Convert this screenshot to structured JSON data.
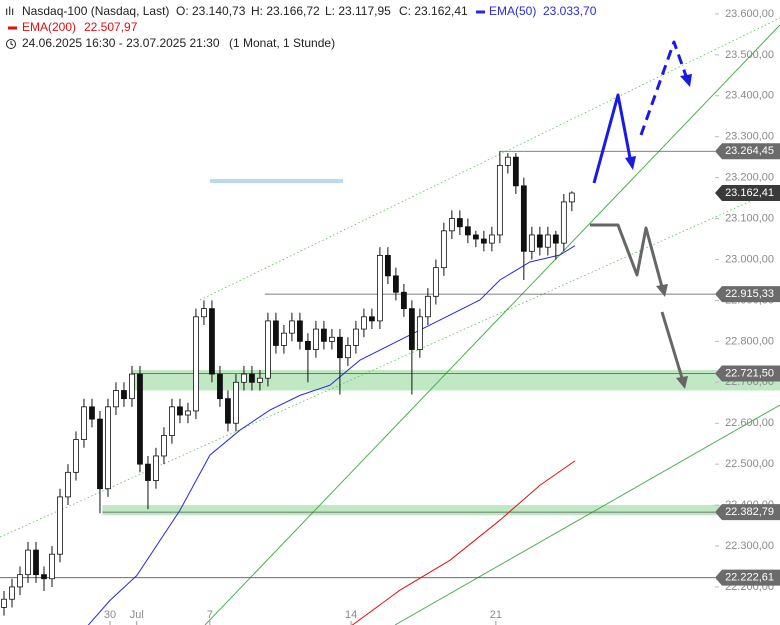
{
  "chart_data": {
    "type": "candlestick",
    "title": "Nasdaq-100 (Nasdaq, Last)",
    "ohlc_labels": [
      "O: 23.140,73",
      "H: 23.166,72",
      "L: 23.117,95",
      "C: 23.162,41"
    ],
    "period": "24.06.2025 16:30 - 23.07.2025 21:30",
    "interval": "(1 Monat, 1 Stunde)",
    "candles": [
      [
        22150,
        22190,
        22130,
        22170
      ],
      [
        22170,
        22220,
        22150,
        22200
      ],
      [
        22200,
        22250,
        22180,
        22230
      ],
      [
        22230,
        22310,
        22210,
        22290
      ],
      [
        22290,
        22310,
        22210,
        22230
      ],
      [
        22230,
        22250,
        22190,
        22220
      ],
      [
        22220,
        22300,
        22200,
        22280
      ],
      [
        22280,
        22440,
        22260,
        22420
      ],
      [
        22420,
        22500,
        22400,
        22480
      ],
      [
        22480,
        22580,
        22460,
        22560
      ],
      [
        22560,
        22660,
        22540,
        22640
      ],
      [
        22640,
        22660,
        22590,
        22610
      ],
      [
        22610,
        22630,
        22380,
        22440
      ],
      [
        22440,
        22660,
        22420,
        22640
      ],
      [
        22640,
        22700,
        22620,
        22680
      ],
      [
        22680,
        22700,
        22640,
        22660
      ],
      [
        22660,
        22740,
        22640,
        22720
      ],
      [
        22720,
        22740,
        22480,
        22500
      ],
      [
        22500,
        22520,
        22390,
        22460
      ],
      [
        22460,
        22540,
        22440,
        22520
      ],
      [
        22520,
        22590,
        22500,
        22570
      ],
      [
        22570,
        22660,
        22550,
        22640
      ],
      [
        22640,
        22660,
        22600,
        22620
      ],
      [
        22620,
        22650,
        22600,
        22630
      ],
      [
        22630,
        22880,
        22610,
        22860
      ],
      [
        22860,
        22900,
        22840,
        22880
      ],
      [
        22880,
        22900,
        22700,
        22720
      ],
      [
        22720,
        22740,
        22640,
        22660
      ],
      [
        22660,
        22680,
        22580,
        22600
      ],
      [
        22600,
        22720,
        22580,
        22700
      ],
      [
        22700,
        22740,
        22680,
        22720
      ],
      [
        22720,
        22740,
        22680,
        22700
      ],
      [
        22700,
        22730,
        22680,
        22710
      ],
      [
        22710,
        22870,
        22690,
        22850
      ],
      [
        22850,
        22870,
        22770,
        22790
      ],
      [
        22790,
        22840,
        22770,
        22820
      ],
      [
        22820,
        22870,
        22800,
        22850
      ],
      [
        22850,
        22870,
        22780,
        22800
      ],
      [
        22800,
        22820,
        22700,
        22780
      ],
      [
        22780,
        22850,
        22760,
        22830
      ],
      [
        22830,
        22850,
        22780,
        22800
      ],
      [
        22800,
        22830,
        22780,
        22810
      ],
      [
        22810,
        22830,
        22670,
        22760
      ],
      [
        22760,
        22810,
        22740,
        22790
      ],
      [
        22790,
        22850,
        22770,
        22830
      ],
      [
        22830,
        22880,
        22810,
        22860
      ],
      [
        22860,
        22880,
        22830,
        22850
      ],
      [
        22850,
        23030,
        22830,
        23010
      ],
      [
        23010,
        23030,
        22940,
        22960
      ],
      [
        22960,
        22980,
        22900,
        22920
      ],
      [
        22920,
        22940,
        22860,
        22880
      ],
      [
        22880,
        22900,
        22670,
        22780
      ],
      [
        22780,
        22880,
        22760,
        22860
      ],
      [
        22860,
        22930,
        22840,
        22910
      ],
      [
        22910,
        23000,
        22890,
        22980
      ],
      [
        22980,
        23090,
        22960,
        23070
      ],
      [
        23070,
        23120,
        23050,
        23100
      ],
      [
        23100,
        23120,
        23060,
        23080
      ],
      [
        23080,
        23100,
        23040,
        23060
      ],
      [
        23060,
        23070,
        23030,
        23050
      ],
      [
        23050,
        23070,
        23020,
        23040
      ],
      [
        23040,
        23080,
        23020,
        23060
      ],
      [
        23060,
        23264.45,
        23040,
        23230
      ],
      [
        23230,
        23260,
        23210,
        23250
      ],
      [
        23250,
        23260,
        23160,
        23180
      ],
      [
        23180,
        23200,
        22950,
        23020
      ],
      [
        23020,
        23080,
        23000,
        23060
      ],
      [
        23060,
        23080,
        23010,
        23030
      ],
      [
        23030,
        23080,
        23010,
        23060
      ],
      [
        23060,
        23070,
        23000,
        23040
      ],
      [
        23040,
        23160,
        23020,
        23140.73
      ],
      [
        23140.73,
        23166.72,
        23117.95,
        23162.41
      ]
    ],
    "last_price_label": "23.162,41",
    "series": [
      {
        "name": "EMA(50)",
        "value_label": "23.033,70",
        "color": "#2a2ad8",
        "x": [
          10.5,
          13.25,
          16.6,
          22,
          25.75,
          29.5,
          33.25,
          37,
          40.75,
          44.5,
          49.5,
          54.5,
          59.5,
          62,
          65.75,
          69.5,
          71.4
        ],
        "values": [
          22106,
          22167,
          22228,
          22387,
          22522,
          22583,
          22632,
          22668,
          22693,
          22754,
          22803,
          22852,
          22901,
          22950,
          22994,
          23011,
          23033.7
        ]
      },
      {
        "name": "EMA(200)",
        "value_label": "22.507,97",
        "color": "#e01010",
        "x": [
          43.5,
          49.5,
          55.75,
          62,
          67,
          71.4
        ],
        "values": [
          22106,
          22192,
          22265,
          22363,
          22448,
          22507.97
        ]
      }
    ],
    "levels": [
      {
        "value": 23264.45,
        "label": "23.264,45",
        "x_from": 62
      },
      {
        "value": 22915.33,
        "label": "22.915,33",
        "x_from": 32.6
      },
      {
        "value": 22721.5,
        "label": "22.721,50",
        "x_from": 16
      },
      {
        "value": 22382.79,
        "label": "22.382,79",
        "x_from": 12.3
      },
      {
        "value": 22222.61,
        "label": "22.222,61",
        "x_from": -0.5
      }
    ],
    "zones": [
      {
        "range": [
          22680,
          22730
        ],
        "x_from": 16
      },
      {
        "range": [
          22375,
          22400
        ],
        "x_from": 12.3
      }
    ],
    "xlim": [
      -0.5,
      88.9
    ],
    "xticks": [
      {
        "value": 13.25,
        "label": "30"
      },
      {
        "value": 16.6,
        "label": "Jul"
      },
      {
        "value": 25.75,
        "label": "7"
      },
      {
        "value": 43.4,
        "label": "14"
      },
      {
        "value": 61.5,
        "label": "21"
      }
    ],
    "ylim": [
      22107,
      23634
    ],
    "yticks": [
      {
        "value": 22200,
        "label": "22.200,00"
      },
      {
        "value": 22300,
        "label": "22.300,00"
      },
      {
        "value": 22400,
        "label": "22.400,00"
      },
      {
        "value": 22500,
        "label": "22.500,00"
      },
      {
        "value": 22600,
        "label": "22.600,00"
      },
      {
        "value": 22700,
        "label": "22.700,00"
      },
      {
        "value": 22800,
        "label": "22.800,00"
      },
      {
        "value": 22900,
        "label": "22.900,00"
      },
      {
        "value": 23000,
        "label": "23.000,00"
      },
      {
        "value": 23100,
        "label": "23.100,00"
      },
      {
        "value": 23200,
        "label": "23.200,00"
      },
      {
        "value": 23300,
        "label": "23.300,00"
      },
      {
        "value": 23400,
        "label": "23.400,00"
      },
      {
        "value": 23500,
        "label": "23.500,00"
      },
      {
        "value": 23600,
        "label": "23.600,00"
      }
    ]
  }
}
